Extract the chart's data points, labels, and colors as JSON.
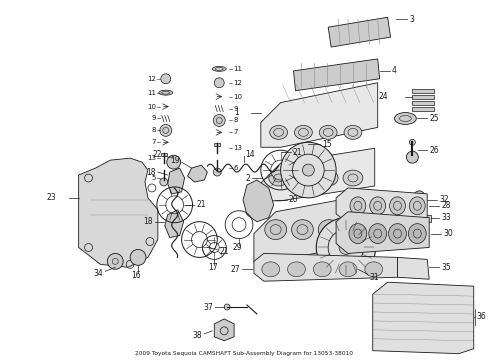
{
  "title": "2009 Toyota Sequoia CAMSHAFT Sub-Assembly Diagram for 13053-38010",
  "bg": "#ffffff",
  "fg": "#1a1a1a",
  "fig_w": 4.9,
  "fig_h": 3.6,
  "dpi": 100,
  "gray": "#888888",
  "lgray": "#cccccc",
  "mgray": "#aaaaaa"
}
